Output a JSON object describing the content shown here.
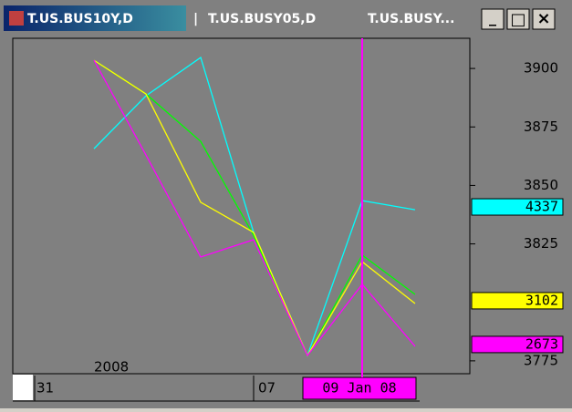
{
  "tabs": [
    "T.US.BUS10Y,D",
    "T.US.BUSY05,D",
    "T.US.BUSY..."
  ],
  "tab_separator": "|",
  "window_buttons": [
    "_",
    "□",
    "×"
  ],
  "chart_data": {
    "type": "line",
    "categories": [
      null,
      null,
      null,
      null,
      null,
      null,
      null
    ],
    "series": [
      {
        "color": "#00ffff",
        "values": [
          3865.7,
          3888.3,
          3904.7,
          3829.9,
          3777.3,
          3843.5,
          3839.6
        ]
      },
      {
        "color": "#00ff00",
        "values": [
          3903.5,
          3889.1,
          3868.8,
          3828.7,
          3777.3,
          3820.2,
          3803.4
        ]
      },
      {
        "color": "#ffff00",
        "values": [
          3903.5,
          3889.1,
          3842.8,
          3829.9,
          3777.3,
          3817.4,
          3799.5
        ]
      },
      {
        "color": "#ff00ff",
        "values": [
          3903.5,
          3863.0,
          3819.4,
          3826.8,
          3777.3,
          3807.7,
          3781.2
        ]
      }
    ],
    "ylim": [
      3769.5,
      3912.9
    ],
    "yticks": [
      3775,
      3825,
      3850,
      3875,
      3900
    ],
    "last_value_markers": [
      {
        "label": "4337",
        "color": "#00ffff",
        "level": 3840.8
      },
      {
        "label": "3102",
        "color": "#ffff00",
        "level": 3800.7
      },
      {
        "label": "2673",
        "color": "#ff00ff",
        "level": 3782.0
      }
    ],
    "x_labels": [
      "31",
      "07"
    ],
    "year_label": "2008",
    "cursor_label": "09 Jan 08"
  }
}
